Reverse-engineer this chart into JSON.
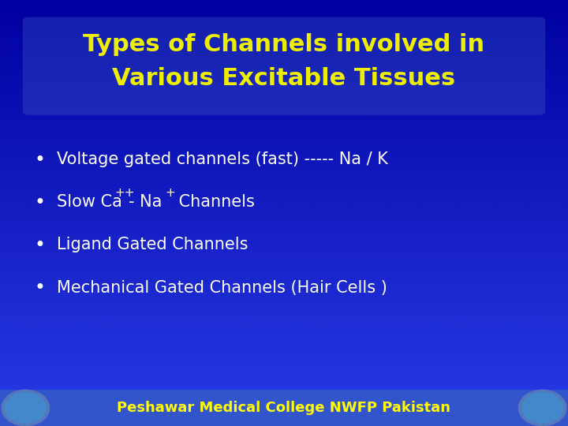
{
  "title_line1": "Types of Channels involved in",
  "title_line2": "Various Excitable Tissues",
  "title_color": "#EEEE00",
  "title_fontsize": 22,
  "bg_color_top": "#0000BB",
  "bg_color_mid": "#1133CC",
  "bg_color_bottom": "#3366EE",
  "bullet_color": "#FFFFFF",
  "bullet_fontsize": 15,
  "footer_text": "Peshawar Medical College NWFP Pakistan",
  "footer_color": "#FFFF00",
  "footer_bg": "#3355CC",
  "footer_fontsize": 13
}
